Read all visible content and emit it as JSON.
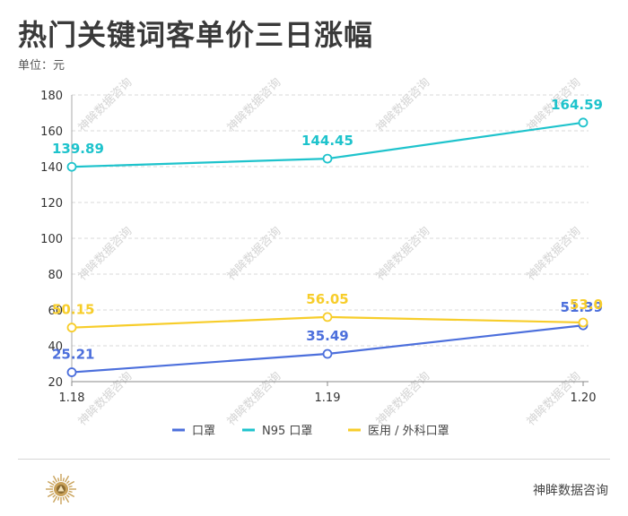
{
  "header": {
    "title": "热门关键词客单价三日涨幅",
    "unit": "单位：元"
  },
  "footer": {
    "brand": "神眸数据咨询",
    "watermark": "神眸数据咨询",
    "logo_icon": "sunburst-logo-icon"
  },
  "chart_data": {
    "type": "line",
    "categories": [
      "1.18",
      "1.19",
      "1.20"
    ],
    "ylim": [
      20,
      180
    ],
    "yticks": [
      20,
      40,
      60,
      80,
      100,
      120,
      140,
      160,
      180
    ],
    "grid": true,
    "legend_position": "bottom",
    "series": [
      {
        "name": "口罩",
        "values": [
          25.21,
          35.49,
          51.39
        ],
        "labels": [
          "25.21",
          "35.49",
          "51.39"
        ],
        "color": "#4c6fdc"
      },
      {
        "name": "N95 口罩",
        "values": [
          139.89,
          144.45,
          164.59
        ],
        "labels": [
          "139.89",
          "144.45",
          "164.59"
        ],
        "color": "#1ec3cc"
      },
      {
        "name": "医用 / 外科口罩",
        "values": [
          50.15,
          56.05,
          53.0
        ],
        "labels": [
          "50.15",
          "56.05",
          "53.0"
        ],
        "color": "#f7cd2a"
      }
    ]
  }
}
